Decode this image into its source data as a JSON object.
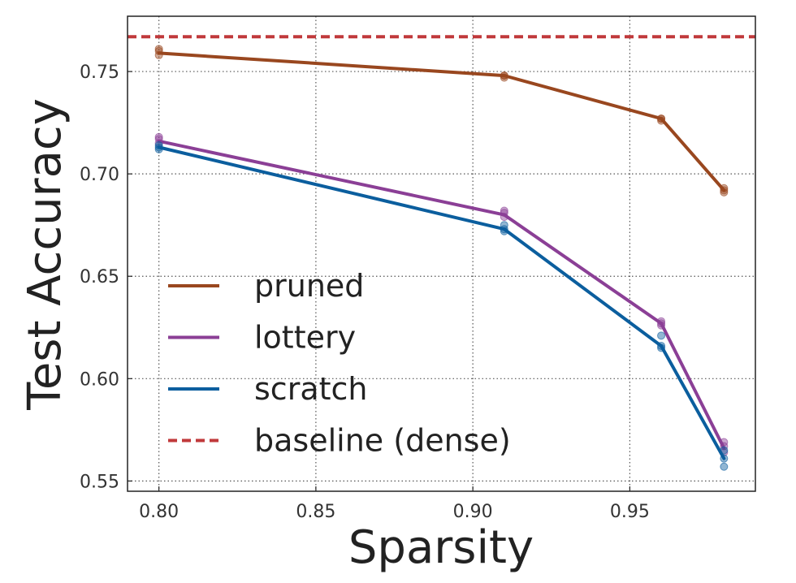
{
  "chart_data": {
    "type": "line",
    "title": "",
    "xlabel": "Sparsity",
    "ylabel": "Test Accuracy",
    "xlim": [
      0.79,
      0.99
    ],
    "ylim": [
      0.545,
      0.777
    ],
    "x_ticks": [
      0.8,
      0.85,
      0.9,
      0.95
    ],
    "x_tick_labels": [
      "0.80",
      "0.85",
      "0.90",
      "0.95"
    ],
    "y_ticks": [
      0.55,
      0.6,
      0.65,
      0.7,
      0.75
    ],
    "y_tick_labels": [
      "0.55",
      "0.60",
      "0.65",
      "0.70",
      "0.75"
    ],
    "grid": true,
    "legend_position": "lower-left",
    "x": [
      0.8,
      0.91,
      0.96,
      0.98
    ],
    "series": [
      {
        "name": "pruned",
        "color": "#99471f",
        "values": [
          0.759,
          0.748,
          0.727,
          0.692
        ],
        "samples": [
          [
            0.758,
            0.76,
            0.761
          ],
          [
            0.747,
            0.748,
            0.748
          ],
          [
            0.726,
            0.727,
            0.727
          ],
          [
            0.691,
            0.692,
            0.693
          ]
        ]
      },
      {
        "name": "lottery",
        "color": "#8b3f96",
        "values": [
          0.716,
          0.68,
          0.627,
          0.566
        ],
        "samples": [
          [
            0.715,
            0.717,
            0.718
          ],
          [
            0.679,
            0.681,
            0.682
          ],
          [
            0.626,
            0.627,
            0.628
          ],
          [
            0.564,
            0.567,
            0.569
          ]
        ]
      },
      {
        "name": "scratch",
        "color": "#0b5e9e",
        "values": [
          0.713,
          0.673,
          0.616,
          0.561
        ],
        "samples": [
          [
            0.712,
            0.713,
            0.714
          ],
          [
            0.672,
            0.673,
            0.675
          ],
          [
            0.615,
            0.616,
            0.621
          ],
          [
            0.557,
            0.561,
            0.565
          ]
        ]
      }
    ],
    "baseline": {
      "name": "baseline (dense)",
      "color": "#c0393b",
      "value": 0.767,
      "style": "dashed"
    }
  }
}
